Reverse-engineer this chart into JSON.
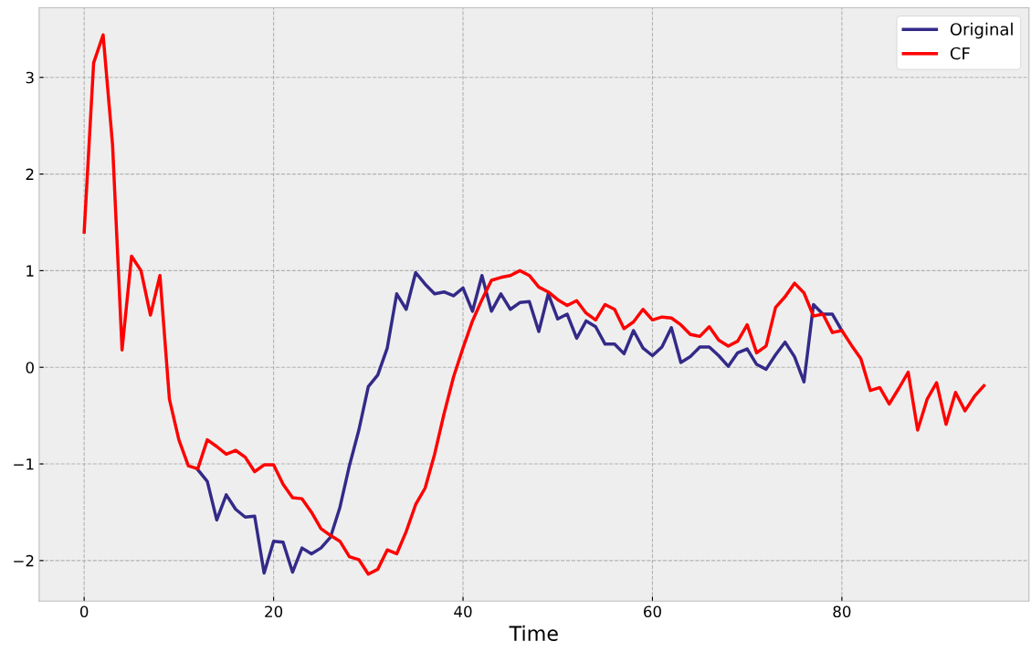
{
  "chart_data": {
    "type": "line",
    "xlabel": "Time",
    "x": [
      0,
      1,
      2,
      3,
      4,
      5,
      6,
      7,
      8,
      9,
      10,
      11,
      12,
      13,
      14,
      15,
      16,
      17,
      18,
      19,
      20,
      21,
      22,
      23,
      24,
      25,
      26,
      27,
      28,
      29,
      30,
      31,
      32,
      33,
      34,
      35,
      36,
      37,
      38,
      39,
      40,
      41,
      42,
      43,
      44,
      45,
      46,
      47,
      48,
      49,
      50,
      51,
      52,
      53,
      54,
      55,
      56,
      57,
      58,
      59,
      60,
      61,
      62,
      63,
      64,
      65,
      66,
      67,
      68,
      69,
      70,
      71,
      72,
      73,
      74,
      75,
      76,
      77,
      78,
      79,
      80,
      81,
      82,
      83,
      84,
      85,
      86,
      87,
      88,
      89,
      90,
      91,
      92,
      93,
      94,
      95
    ],
    "series": [
      {
        "name": "Original",
        "color": "#332a88",
        "values": [
          null,
          null,
          null,
          null,
          null,
          null,
          null,
          null,
          null,
          null,
          null,
          null,
          -1.06,
          -1.18,
          -1.58,
          -1.32,
          -1.47,
          -1.55,
          -1.54,
          -2.13,
          -1.8,
          -1.81,
          -2.12,
          -1.87,
          -1.93,
          -1.87,
          -1.76,
          -1.45,
          -1.02,
          -0.65,
          -0.2,
          -0.08,
          0.2,
          0.76,
          0.6,
          0.98,
          0.86,
          0.76,
          0.78,
          0.74,
          0.82,
          0.58,
          0.95,
          0.58,
          0.76,
          0.6,
          0.67,
          0.68,
          0.37,
          0.76,
          0.5,
          0.55,
          0.3,
          0.48,
          0.42,
          0.24,
          0.24,
          0.14,
          0.38,
          0.2,
          0.12,
          0.21,
          0.41,
          0.05,
          0.11,
          0.21,
          0.21,
          0.12,
          0.01,
          0.15,
          0.19,
          0.03,
          -0.02,
          0.13,
          0.26,
          0.11,
          -0.15,
          0.65,
          0.55,
          0.55,
          0.38,
          null,
          null,
          null,
          null,
          null,
          null,
          null,
          null,
          null,
          null,
          null,
          null,
          null,
          null,
          null
        ]
      },
      {
        "name": "CF",
        "color": "#ff0000",
        "values": [
          1.4,
          3.15,
          3.44,
          2.3,
          0.18,
          1.15,
          1.0,
          0.54,
          0.95,
          -0.33,
          -0.75,
          -1.02,
          -1.05,
          -0.75,
          -0.82,
          -0.9,
          -0.86,
          -0.93,
          -1.08,
          -1.01,
          -1.01,
          -1.21,
          -1.35,
          -1.36,
          -1.5,
          -1.67,
          -1.74,
          -1.8,
          -1.96,
          -1.99,
          -2.14,
          -2.09,
          -1.89,
          -1.93,
          -1.7,
          -1.42,
          -1.25,
          -0.9,
          -0.48,
          -0.1,
          0.2,
          0.48,
          0.7,
          0.9,
          0.93,
          0.95,
          1.0,
          0.95,
          0.83,
          0.78,
          0.7,
          0.64,
          0.69,
          0.56,
          0.49,
          0.65,
          0.6,
          0.4,
          0.47,
          0.6,
          0.49,
          0.52,
          0.51,
          0.44,
          0.34,
          0.32,
          0.42,
          0.28,
          0.22,
          0.27,
          0.44,
          0.15,
          0.22,
          0.62,
          0.73,
          0.87,
          0.77,
          0.53,
          0.55,
          0.36,
          0.38,
          0.23,
          0.09,
          -0.24,
          -0.21,
          -0.38,
          -0.22,
          -0.05,
          -0.65,
          -0.33,
          -0.16,
          -0.59,
          -0.26,
          -0.45,
          -0.3,
          -0.19
        ]
      }
    ],
    "xlim": [
      -4.75,
      99.75
    ],
    "ylim": [
      -2.42,
      3.72
    ],
    "xticks": [
      0,
      20,
      40,
      60,
      80
    ],
    "yticks": [
      {
        "value": -2,
        "label": "−2"
      },
      {
        "value": -1,
        "label": "−1"
      },
      0,
      1,
      2,
      3
    ],
    "grid": true,
    "legend": "top right",
    "line_style": "solid",
    "marker": "none"
  }
}
